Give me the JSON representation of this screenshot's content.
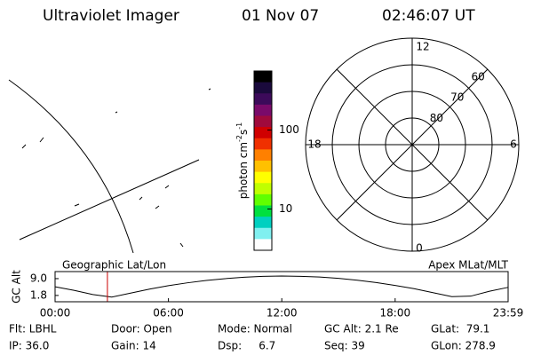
{
  "header": {
    "title": "Ultraviolet Imager",
    "date": "01 Nov 07",
    "time": "02:46:07 UT"
  },
  "colorbar": {
    "label": [
      "photon cm",
      "-2",
      "s",
      "-1"
    ],
    "scale": "log",
    "lim": [
      3,
      560
    ],
    "ticks": [
      10,
      100
    ],
    "colors": [
      "#000000",
      "#1a0a3c",
      "#3c0a5a",
      "#7a0a6a",
      "#a00a3c",
      "#d00000",
      "#f03000",
      "#ff8000",
      "#ffc000",
      "#ffff00",
      "#c0ff00",
      "#60ff00",
      "#00e040",
      "#00d0c0",
      "#80f0f0",
      "#ffffff"
    ]
  },
  "polar": {
    "mlt_labels": [
      "12",
      "18",
      "6",
      "0"
    ],
    "rings": [
      {
        "value": 80,
        "label": "80"
      },
      {
        "value": 70,
        "label": "70"
      },
      {
        "value": 60,
        "label": "60"
      }
    ],
    "rlim": [
      90,
      50
    ]
  },
  "chart_data": {
    "type": "line",
    "ylabel": "GC Alt",
    "left_label": "Geographic Lat/Lon",
    "right_label": "Apex MLat/MLT",
    "xlim": [
      0,
      23.98
    ],
    "ylim": [
      1,
      10.5
    ],
    "xticks": [
      {
        "value": 0,
        "label": "00:00"
      },
      {
        "value": 6,
        "label": "06:00"
      },
      {
        "value": 12,
        "label": "12:00"
      },
      {
        "value": 18,
        "label": "18:00"
      },
      {
        "value": 23.98,
        "label": "23:59"
      }
    ],
    "yticks": [
      {
        "value": 9.0,
        "label": "9.0"
      },
      {
        "value": 1.8,
        "label": "1.8"
      }
    ],
    "x": [
      0,
      1,
      2,
      3,
      4,
      5,
      6,
      7,
      8,
      9,
      10,
      11,
      12,
      13,
      14,
      15,
      16,
      17,
      18,
      19,
      20,
      21,
      22,
      23,
      24
    ],
    "series": [
      {
        "color": "#000000",
        "values": [
          5.5,
          4.0,
          2.2,
          1.1,
          2.8,
          4.5,
          6.0,
          7.2,
          8.2,
          9.0,
          9.6,
          10.0,
          10.1,
          10.0,
          9.7,
          9.1,
          8.3,
          7.3,
          6.1,
          4.7,
          3.0,
          1.3,
          1.5,
          3.6,
          5.3
        ]
      }
    ],
    "marker": {
      "x": 2.77,
      "color": "#cc0000"
    }
  },
  "footer": [
    [
      "Flt: LBHL",
      "Door: Open",
      "Mode: Normal",
      "GC Alt: 2.1 Re",
      "GLat:  79.1"
    ],
    [
      "IP: 36.0",
      "Gain: 14",
      "Dsp:     6.7",
      "Seq: 39",
      "GLon: 278.9"
    ]
  ]
}
